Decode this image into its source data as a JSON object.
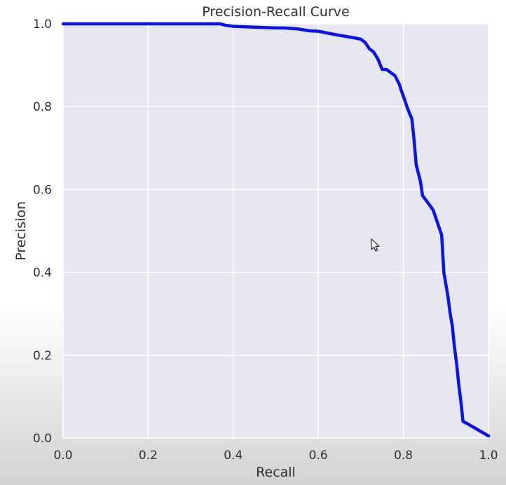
{
  "chart_data": {
    "type": "line",
    "title": "Precision-Recall Curve",
    "xlabel": "Recall",
    "ylabel": "Precision",
    "xlim": [
      0.0,
      1.0
    ],
    "ylim": [
      0.0,
      1.0
    ],
    "xticks": [
      "0.0",
      "0.2",
      "0.4",
      "0.6",
      "0.8",
      "1.0"
    ],
    "yticks": [
      "0.0",
      "0.2",
      "0.4",
      "0.6",
      "0.8",
      "1.0"
    ],
    "grid": true,
    "line_color": "#0a14e6",
    "background_color": "#e6e7f1",
    "series": [
      {
        "x": [
          0.0,
          0.37,
          0.38,
          0.4,
          0.45,
          0.5,
          0.52,
          0.55,
          0.58,
          0.6,
          0.62,
          0.65,
          0.68,
          0.7,
          0.71,
          0.72,
          0.73,
          0.74,
          0.75,
          0.76,
          0.78,
          0.79,
          0.8,
          0.81,
          0.82,
          0.825,
          0.83,
          0.835,
          0.84,
          0.845,
          0.86,
          0.87,
          0.88,
          0.89,
          0.895,
          0.9,
          0.905,
          0.91,
          0.915,
          0.92,
          0.925,
          0.93,
          0.935,
          0.94,
          0.95,
          1.0
        ],
        "y": [
          1.0,
          1.0,
          0.997,
          0.994,
          0.992,
          0.99,
          0.99,
          0.988,
          0.983,
          0.982,
          0.978,
          0.972,
          0.967,
          0.963,
          0.955,
          0.94,
          0.932,
          0.915,
          0.89,
          0.89,
          0.875,
          0.855,
          0.825,
          0.795,
          0.77,
          0.72,
          0.66,
          0.64,
          0.62,
          0.585,
          0.565,
          0.55,
          0.52,
          0.49,
          0.4,
          0.37,
          0.34,
          0.3,
          0.27,
          0.22,
          0.18,
          0.13,
          0.09,
          0.04,
          0.035,
          0.005
        ]
      }
    ]
  }
}
